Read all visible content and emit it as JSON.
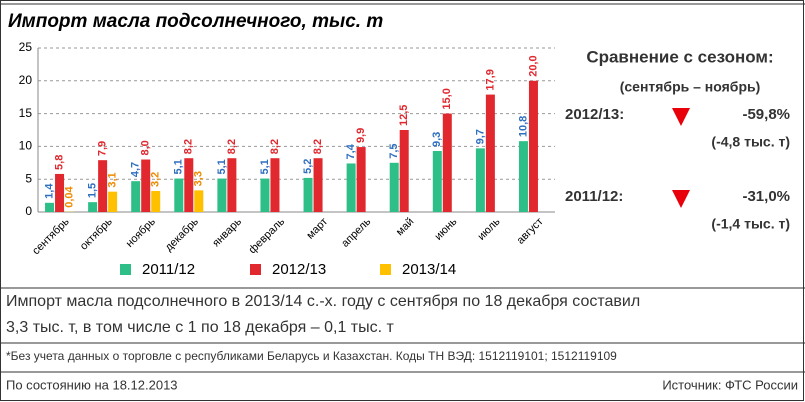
{
  "chart_data": {
    "type": "bar",
    "title": "Импорт масла подсолнечного, тыс. т",
    "categories": [
      "сентябрь",
      "октябрь",
      "ноябрь",
      "декабрь",
      "январь",
      "февраль",
      "март",
      "апрель",
      "май",
      "июнь",
      "июль",
      "август"
    ],
    "series": [
      {
        "name": "2011/12",
        "color": "#2dbf87",
        "values": [
          1.4,
          1.5,
          4.7,
          5.1,
          5.1,
          5.1,
          5.2,
          7.4,
          7.5,
          9.3,
          9.7,
          10.8
        ],
        "value_labels": [
          "1,4",
          "1,5",
          "4,7",
          "5,1",
          "5,1",
          "5,1",
          "5,2",
          "7,4",
          "7,5",
          "9,3",
          "9,7",
          "10,8"
        ],
        "label_color": "#2f6fc0"
      },
      {
        "name": "2012/13",
        "color": "#e0282e",
        "values": [
          5.8,
          7.9,
          8.0,
          8.2,
          8.2,
          8.2,
          8.2,
          9.9,
          12.5,
          15.0,
          17.9,
          20.0
        ],
        "value_labels": [
          "5,8",
          "7,9",
          "8,0",
          "8,2",
          "8,2",
          "8,2",
          "8,2",
          "9,9",
          "12,5",
          "15,0",
          "17,9",
          "20,0"
        ],
        "label_color": "#e0282e"
      },
      {
        "name": "2013/14",
        "color": "#ffc000",
        "values": [
          0.04,
          3.1,
          3.2,
          3.3,
          null,
          null,
          null,
          null,
          null,
          null,
          null,
          null
        ],
        "value_labels": [
          "0,04",
          "3,1",
          "3,2",
          "3,3",
          null,
          null,
          null,
          null,
          null,
          null,
          null,
          null
        ],
        "label_color": "#f08a00"
      }
    ],
    "ylim": [
      0,
      25
    ],
    "yticks": [
      0,
      5,
      10,
      15,
      20,
      25
    ],
    "grid": true,
    "legend": "bottom"
  },
  "panel": {
    "heading": "Сравнение с сезоном:",
    "period": "(сентябрь – ноябрь)",
    "rows": [
      {
        "season": "2012/13:",
        "change": "-59,8%",
        "abs": "(-4,8 тыс. т)"
      },
      {
        "season": "2011/12:",
        "change": "-31,0%",
        "abs": "(-1,4 тыс. т)"
      }
    ]
  },
  "notes": {
    "line1": "Импорт масла подсолнечного  в 2013/14 с.-х. году с сентября по 18 декабря составил",
    "line2": "3,3 тыс. т, в том числе с 1 по 18 декабря – 0,1 тыс. т",
    "footnote": "*Без учета данных о торговле с республиками Беларусь и Казахстан. Коды ТН ВЭД: 1512119101; 1512119109",
    "date": "По состоянию на 18.12.2013",
    "source": "Источник: ФТС России"
  }
}
